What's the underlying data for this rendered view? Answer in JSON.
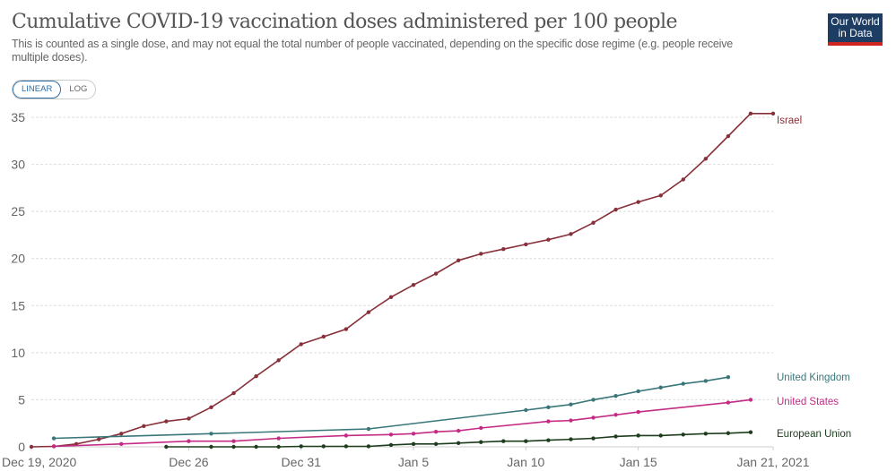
{
  "header": {
    "title": "Cumulative COVID-19 vaccination doses administered per 100 people",
    "subtitle": "This is counted as a single dose, and may not equal the total number of people vaccinated, depending on the specific dose regime (e.g. people receive multiple doses).",
    "logo_text": "Our World in Data"
  },
  "controls": {
    "linear_label": "LINEAR",
    "log_label": "LOG",
    "selected": "LINEAR"
  },
  "chart_data": {
    "type": "line",
    "title": "Cumulative COVID-19 vaccination doses administered per 100 people",
    "xlim": [
      "2020-12-19",
      "2021-01-21"
    ],
    "ylim": [
      0,
      35
    ],
    "y_ticks": [
      0,
      5,
      10,
      15,
      20,
      25,
      30,
      35
    ],
    "x_ticks": [
      {
        "date": "2020-12-19",
        "label": "Dec 19, 2020"
      },
      {
        "date": "2020-12-26",
        "label": "Dec 26"
      },
      {
        "date": "2020-12-31",
        "label": "Dec 31"
      },
      {
        "date": "2021-01-05",
        "label": "Jan 5"
      },
      {
        "date": "2021-01-10",
        "label": "Jan 10"
      },
      {
        "date": "2021-01-15",
        "label": "Jan 15"
      },
      {
        "date": "2021-01-21",
        "label": "Jan 21, 2021"
      }
    ],
    "grid": "horizontal dashed",
    "legend": "right, inline labels",
    "series": [
      {
        "name": "Israel",
        "color": "#883039",
        "points": [
          [
            "2020-12-19",
            0
          ],
          [
            "2020-12-20",
            0.05
          ],
          [
            "2020-12-21",
            0.3
          ],
          [
            "2020-12-22",
            0.8
          ],
          [
            "2020-12-23",
            1.4
          ],
          [
            "2020-12-24",
            2.2
          ],
          [
            "2020-12-25",
            2.7
          ],
          [
            "2020-12-26",
            3.0
          ],
          [
            "2020-12-27",
            4.2
          ],
          [
            "2020-12-28",
            5.7
          ],
          [
            "2020-12-29",
            7.5
          ],
          [
            "2020-12-30",
            9.2
          ],
          [
            "2020-12-31",
            10.9
          ],
          [
            "2021-01-01",
            11.7
          ],
          [
            "2021-01-02",
            12.5
          ],
          [
            "2021-01-03",
            14.3
          ],
          [
            "2021-01-04",
            15.9
          ],
          [
            "2021-01-05",
            17.2
          ],
          [
            "2021-01-06",
            18.4
          ],
          [
            "2021-01-07",
            19.8
          ],
          [
            "2021-01-08",
            20.5
          ],
          [
            "2021-01-09",
            21.0
          ],
          [
            "2021-01-10",
            21.5
          ],
          [
            "2021-01-11",
            22.0
          ],
          [
            "2021-01-12",
            22.6
          ],
          [
            "2021-01-13",
            23.8
          ],
          [
            "2021-01-14",
            25.2
          ],
          [
            "2021-01-15",
            26.0
          ],
          [
            "2021-01-16",
            26.7
          ],
          [
            "2021-01-17",
            28.4
          ],
          [
            "2021-01-18",
            30.6
          ],
          [
            "2021-01-19",
            33.0
          ],
          [
            "2021-01-20",
            35.4
          ],
          [
            "2021-01-21",
            35.4
          ]
        ]
      },
      {
        "name": "United Kingdom",
        "color": "#38767a",
        "points": [
          [
            "2020-12-20",
            0.9
          ],
          [
            "2020-12-27",
            1.4
          ],
          [
            "2021-01-03",
            1.9
          ],
          [
            "2021-01-10",
            3.9
          ],
          [
            "2021-01-11",
            4.2
          ],
          [
            "2021-01-12",
            4.5
          ],
          [
            "2021-01-13",
            5.0
          ],
          [
            "2021-01-14",
            5.4
          ],
          [
            "2021-01-15",
            5.9
          ],
          [
            "2021-01-16",
            6.3
          ],
          [
            "2021-01-17",
            6.7
          ],
          [
            "2021-01-18",
            7.0
          ],
          [
            "2021-01-19",
            7.4
          ]
        ]
      },
      {
        "name": "United States",
        "color": "#c42b85",
        "points": [
          [
            "2020-12-20",
            0.05
          ],
          [
            "2020-12-23",
            0.3
          ],
          [
            "2020-12-26",
            0.6
          ],
          [
            "2020-12-28",
            0.6
          ],
          [
            "2020-12-30",
            0.9
          ],
          [
            "2021-01-02",
            1.2
          ],
          [
            "2021-01-04",
            1.3
          ],
          [
            "2021-01-05",
            1.4
          ],
          [
            "2021-01-06",
            1.6
          ],
          [
            "2021-01-07",
            1.7
          ],
          [
            "2021-01-08",
            2.0
          ],
          [
            "2021-01-11",
            2.7
          ],
          [
            "2021-01-12",
            2.8
          ],
          [
            "2021-01-13",
            3.1
          ],
          [
            "2021-01-14",
            3.4
          ],
          [
            "2021-01-15",
            3.7
          ],
          [
            "2021-01-19",
            4.7
          ],
          [
            "2021-01-20",
            5.0
          ]
        ]
      },
      {
        "name": "European Union",
        "color": "#1e3d1e",
        "points": [
          [
            "2020-12-25",
            0
          ],
          [
            "2020-12-27",
            0
          ],
          [
            "2020-12-28",
            0
          ],
          [
            "2020-12-29",
            0
          ],
          [
            "2020-12-30",
            0
          ],
          [
            "2020-12-31",
            0.05
          ],
          [
            "2021-01-01",
            0.05
          ],
          [
            "2021-01-02",
            0.05
          ],
          [
            "2021-01-03",
            0.05
          ],
          [
            "2021-01-04",
            0.2
          ],
          [
            "2021-01-05",
            0.3
          ],
          [
            "2021-01-06",
            0.3
          ],
          [
            "2021-01-07",
            0.4
          ],
          [
            "2021-01-08",
            0.5
          ],
          [
            "2021-01-09",
            0.6
          ],
          [
            "2021-01-10",
            0.6
          ],
          [
            "2021-01-11",
            0.7
          ],
          [
            "2021-01-12",
            0.8
          ],
          [
            "2021-01-13",
            0.9
          ],
          [
            "2021-01-14",
            1.1
          ],
          [
            "2021-01-15",
            1.2
          ],
          [
            "2021-01-16",
            1.2
          ],
          [
            "2021-01-17",
            1.3
          ],
          [
            "2021-01-18",
            1.4
          ],
          [
            "2021-01-19",
            1.45
          ],
          [
            "2021-01-20",
            1.55
          ]
        ]
      }
    ]
  }
}
